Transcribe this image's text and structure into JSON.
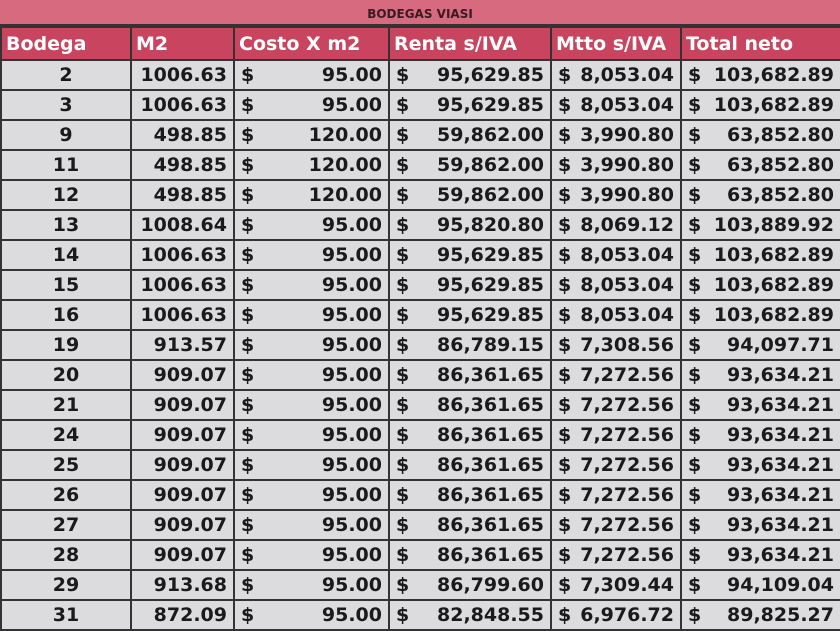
{
  "title": "BODEGAS VIASI",
  "currency": "$",
  "table": {
    "headers": [
      "Bodega",
      "M2",
      "Costo X m2",
      "Renta s/IVA",
      "Mtto s/IVA",
      "Total neto"
    ],
    "rows": [
      [
        "2",
        "1006.63",
        "95.00",
        "95,629.85",
        "8,053.04",
        "103,682.89"
      ],
      [
        "3",
        "1006.63",
        "95.00",
        "95,629.85",
        "8,053.04",
        "103,682.89"
      ],
      [
        "9",
        "498.85",
        "120.00",
        "59,862.00",
        "3,990.80",
        "63,852.80"
      ],
      [
        "11",
        "498.85",
        "120.00",
        "59,862.00",
        "3,990.80",
        "63,852.80"
      ],
      [
        "12",
        "498.85",
        "120.00",
        "59,862.00",
        "3,990.80",
        "63,852.80"
      ],
      [
        "13",
        "1008.64",
        "95.00",
        "95,820.80",
        "8,069.12",
        "103,889.92"
      ],
      [
        "14",
        "1006.63",
        "95.00",
        "95,629.85",
        "8,053.04",
        "103,682.89"
      ],
      [
        "15",
        "1006.63",
        "95.00",
        "95,629.85",
        "8,053.04",
        "103,682.89"
      ],
      [
        "16",
        "1006.63",
        "95.00",
        "95,629.85",
        "8,053.04",
        "103,682.89"
      ],
      [
        "19",
        "913.57",
        "95.00",
        "86,789.15",
        "7,308.56",
        "94,097.71"
      ],
      [
        "20",
        "909.07",
        "95.00",
        "86,361.65",
        "7,272.56",
        "93,634.21"
      ],
      [
        "21",
        "909.07",
        "95.00",
        "86,361.65",
        "7,272.56",
        "93,634.21"
      ],
      [
        "24",
        "909.07",
        "95.00",
        "86,361.65",
        "7,272.56",
        "93,634.21"
      ],
      [
        "25",
        "909.07",
        "95.00",
        "86,361.65",
        "7,272.56",
        "93,634.21"
      ],
      [
        "26",
        "909.07",
        "95.00",
        "86,361.65",
        "7,272.56",
        "93,634.21"
      ],
      [
        "27",
        "909.07",
        "95.00",
        "86,361.65",
        "7,272.56",
        "93,634.21"
      ],
      [
        "28",
        "909.07",
        "95.00",
        "86,361.65",
        "7,272.56",
        "93,634.21"
      ],
      [
        "29",
        "913.68",
        "95.00",
        "86,799.60",
        "7,309.44",
        "94,109.04"
      ],
      [
        "31",
        "872.09",
        "95.00",
        "82,848.55",
        "6,976.72",
        "89,825.27"
      ]
    ]
  }
}
